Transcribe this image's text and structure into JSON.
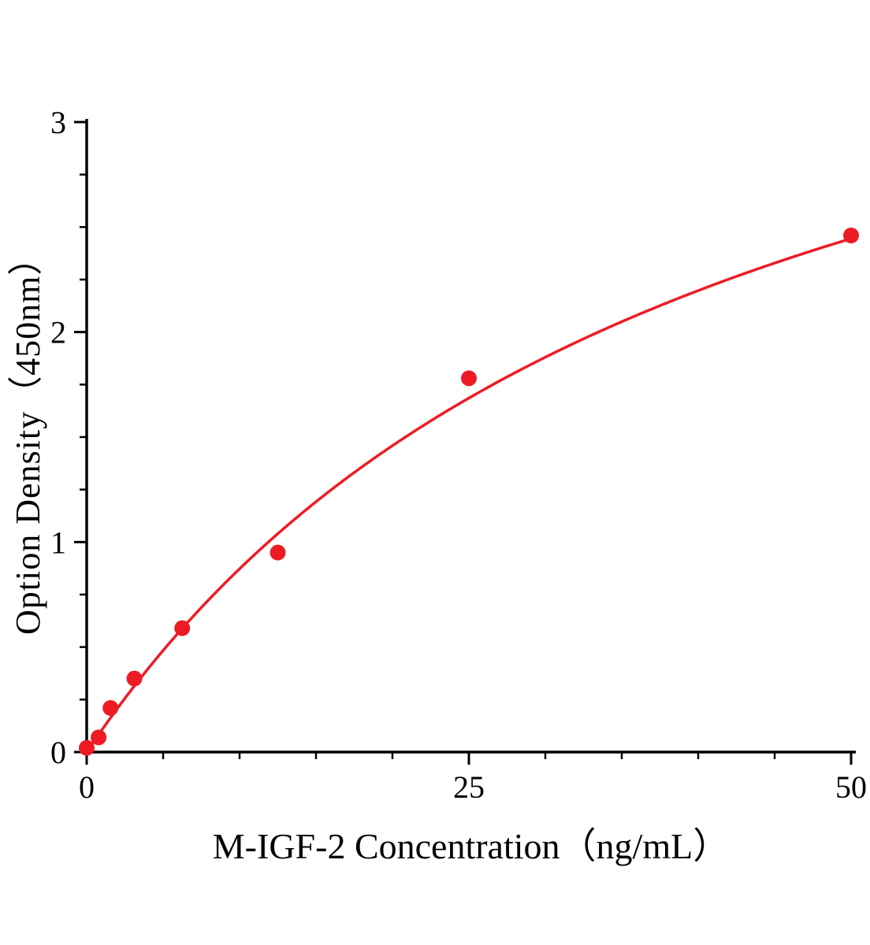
{
  "chart_data": {
    "type": "scatter",
    "title": "",
    "xlabel": "M-IGF-2 Concentration（ng/mL）",
    "ylabel": "Option Density（450nm）",
    "x": [
      0,
      0.78,
      1.56,
      3.12,
      6.25,
      12.5,
      25,
      50
    ],
    "y": [
      0.02,
      0.07,
      0.21,
      0.35,
      0.59,
      0.95,
      1.78,
      2.46
    ],
    "xlim": [
      0,
      50
    ],
    "ylim": [
      0,
      3
    ],
    "x_major_ticks": [
      0,
      25,
      50
    ],
    "y_major_ticks": [
      0,
      1,
      2,
      3
    ],
    "x_minor_step": 5,
    "y_minor_step": 0.25,
    "marker_color": "#ed1c24",
    "line_color": "#ed1c24",
    "axis_color": "#000000",
    "marker_radius": 10,
    "fit": {
      "type": "michaelis-menten",
      "vmax": 4.45,
      "km": 41
    },
    "grid": false,
    "legend": "none"
  }
}
